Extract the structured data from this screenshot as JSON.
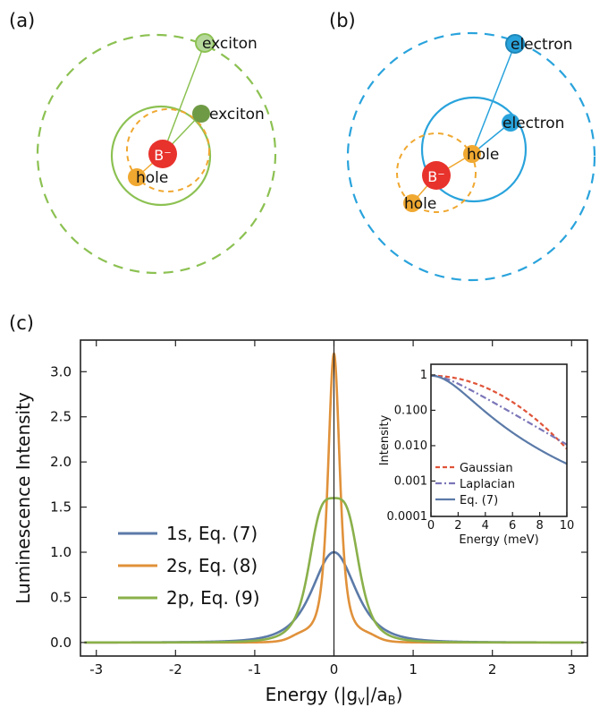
{
  "panels": {
    "a": "(a)",
    "b": "(b)",
    "c": "(c)"
  },
  "diagram_a": {
    "center_label": "B⁻",
    "outer_particle": "exciton",
    "inner_particle": "exciton",
    "hole_label": "hole",
    "colors": {
      "green": "#8cc152",
      "green_dark": "#6e9a45",
      "green_light": "#b5d89a",
      "orange": "#f0a830",
      "red": "#e8322c"
    }
  },
  "diagram_b": {
    "center_label": "B⁻",
    "outer_particle": "electron",
    "inner_particle": "electron",
    "hole_inner_label": "hole",
    "hole_outer_label": "hole",
    "colors": {
      "blue": "#29a3dc",
      "orange": "#f0a830",
      "red": "#e8322c"
    }
  },
  "chart_data": [
    {
      "type": "line",
      "xlabel": "Energy (|g",
      "xlabel_sub": "v",
      "xlabel_mid": "|/a",
      "xlabel_sub2": "B",
      "xlabel_end": ")",
      "ylabel": "Luminescence Intensity",
      "xlim": [
        -3.2,
        3.2
      ],
      "ylim": [
        -0.15,
        3.35
      ],
      "xticks": [
        -3,
        -2,
        -1,
        0,
        1,
        2,
        3
      ],
      "yticks": [
        0.0,
        0.5,
        1.0,
        1.5,
        2.0,
        2.5,
        3.0
      ],
      "xtick_labels": [
        "-3",
        "-2",
        "-1",
        "0",
        "1",
        "2",
        "3"
      ],
      "ytick_labels": [
        "0.0",
        "0.5",
        "1.0",
        "1.5",
        "2.0",
        "2.5",
        "3.0"
      ],
      "vline_x": 0,
      "legend_position": "center-left",
      "series": [
        {
          "name": "1s, Eq. (7)",
          "color": "#5b7aa8",
          "kind": "lorentz",
          "amp": 1.0,
          "width": 0.5
        },
        {
          "name": "2s, Eq. (8)",
          "color": "#e0913a",
          "kind": "twoS",
          "amp": 3.2
        },
        {
          "name": "2p, Eq. (9)",
          "color": "#8ab04b",
          "kind": "twoP",
          "amp": 1.6
        }
      ]
    },
    {
      "type": "line",
      "xlabel": "Energy (meV)",
      "ylabel": "Intensity",
      "xlim": [
        0,
        10
      ],
      "ylim_log": [
        0.0001,
        2
      ],
      "xticks": [
        0,
        2,
        4,
        6,
        8,
        10
      ],
      "xtick_labels": [
        "0",
        "2",
        "4",
        "6",
        "8",
        "10"
      ],
      "yticks": [
        0.0001,
        0.001,
        0.01,
        0.1,
        1
      ],
      "ytick_labels": [
        "0.0001",
        "0.001",
        "0.010",
        "0.100",
        "1"
      ],
      "yscale": "log",
      "legend_position": "bottom-left",
      "series": [
        {
          "name": "Gaussian",
          "color": "#e0553a",
          "dash": "5,3"
        },
        {
          "name": "Laplacian",
          "color": "#7b76b8",
          "dash": "7,3,2,3"
        },
        {
          "name": "Eq. (7)",
          "color": "#5b7aa8",
          "dash": ""
        }
      ]
    }
  ]
}
